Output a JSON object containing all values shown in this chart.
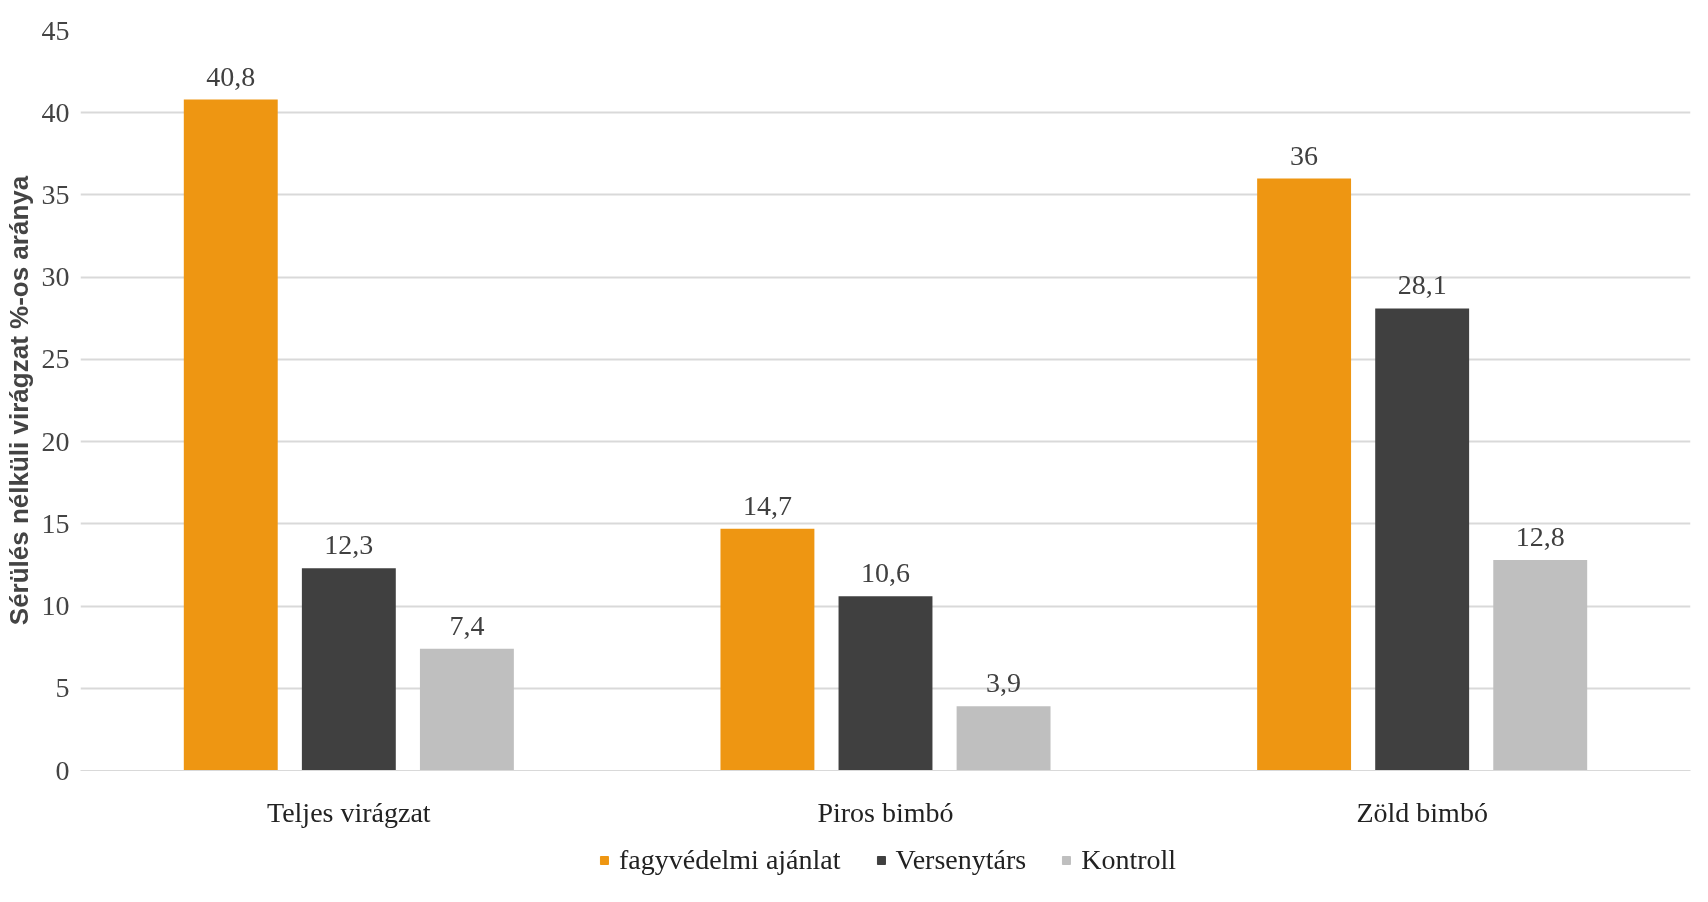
{
  "chart_data": {
    "type": "bar",
    "ylabel": "Sérülés nélküli virágzat %-os aránya",
    "categories": [
      "Teljes virágzat",
      "Piros bimbó",
      "Zöld bimbó"
    ],
    "series": [
      {
        "name": "fagyvédelmi ajánlat",
        "color": "#ee9612",
        "values": [
          40.8,
          14.7,
          36
        ],
        "value_labels": [
          "40,8",
          "14,7",
          "36"
        ]
      },
      {
        "name": "Versenytárs",
        "color": "#404040",
        "values": [
          12.3,
          10.6,
          28.1
        ],
        "value_labels": [
          "12,3",
          "10,6",
          "28,1"
        ]
      },
      {
        "name": "Kontroll",
        "color": "#bfbfbf",
        "values": [
          7.4,
          3.9,
          12.8
        ],
        "value_labels": [
          "7,4",
          "3,9",
          "12,8"
        ]
      }
    ],
    "ylim": [
      0,
      45
    ],
    "yticks": [
      0,
      5,
      10,
      15,
      20,
      25,
      30,
      35,
      40,
      45
    ],
    "grid": "y",
    "legend": "bottom"
  }
}
